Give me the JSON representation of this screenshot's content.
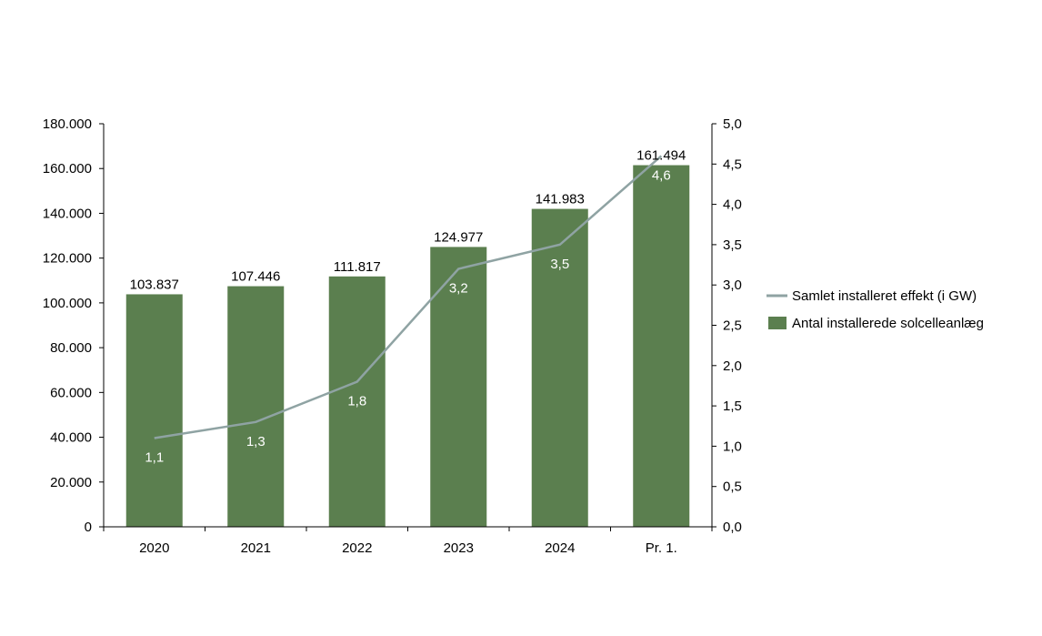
{
  "chart_data": {
    "type": "bar+line",
    "categories": [
      "2020",
      "2021",
      "2022",
      "2023",
      "2024",
      "Pr. 1."
    ],
    "series": [
      {
        "name": "Antal installerede solcelleanlæg",
        "type": "bar",
        "axis": "left",
        "values": [
          103837,
          107446,
          111817,
          124977,
          141983,
          161494
        ],
        "labels": [
          "103.837",
          "107.446",
          "111.817",
          "124.977",
          "141.983",
          "161.494"
        ],
        "color": "#5b7f4f"
      },
      {
        "name": "Samlet installeret effekt (i GW)",
        "type": "line",
        "axis": "right",
        "values": [
          1.1,
          1.3,
          1.8,
          3.2,
          3.5,
          4.6
        ],
        "labels": [
          "1,1",
          "1,3",
          "1,8",
          "3,2",
          "3,5",
          "4,6"
        ],
        "color": "#8fa3a3"
      }
    ],
    "left_axis": {
      "ylim": [
        0,
        180000
      ],
      "ticks": [
        "0",
        "20.000",
        "40.000",
        "60.000",
        "80.000",
        "100.000",
        "120.000",
        "140.000",
        "160.000",
        "180.000"
      ]
    },
    "right_axis": {
      "ylim": [
        0,
        5
      ],
      "ticks": [
        "0,0",
        "0,5",
        "1,0",
        "1,5",
        "2,0",
        "2,5",
        "3,0",
        "3,5",
        "4,0",
        "4,5",
        "5,0"
      ]
    },
    "legend": {
      "placement": "right",
      "entries": [
        "Samlet installeret effekt (i GW)",
        "Antal installerede solcelleanlæg"
      ]
    },
    "grid": false
  }
}
